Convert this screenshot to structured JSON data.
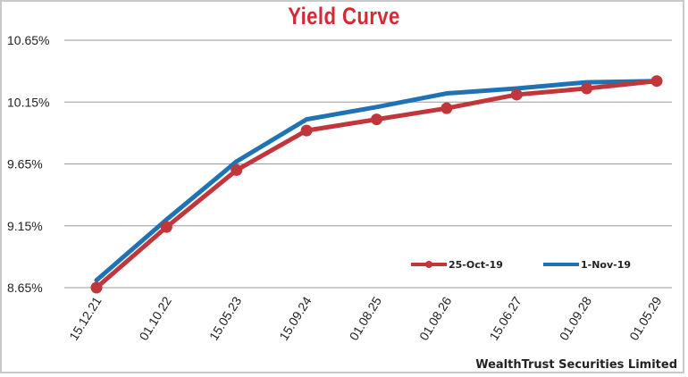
{
  "chart_data": {
    "type": "line",
    "title": "Yield Curve",
    "source": "WealthTrust Securities Limited",
    "xlabel": "",
    "ylabel": "",
    "categories": [
      "15.12.21",
      "01.10.22",
      "15.05.23",
      "15.09.24",
      "01.08.25",
      "01.08.26",
      "15.06.27",
      "01.09.28",
      "01.05.29"
    ],
    "yticks": [
      "8.65%",
      "9.15%",
      "9.65%",
      "10.15%",
      "10.65%"
    ],
    "ylim": [
      8.65,
      10.65
    ],
    "grid": true,
    "legend_position": "bottom-right",
    "series": [
      {
        "name": "25-Oct-19",
        "color": "#c0363b",
        "marker": "circle",
        "values": [
          8.65,
          9.14,
          9.6,
          9.92,
          10.01,
          10.1,
          10.21,
          10.26,
          10.32
        ]
      },
      {
        "name": "1-Nov-19",
        "color": "#1f73b5",
        "marker": "none",
        "values": [
          8.71,
          9.2,
          9.67,
          10.01,
          10.11,
          10.22,
          10.26,
          10.31,
          10.32
        ]
      }
    ]
  }
}
